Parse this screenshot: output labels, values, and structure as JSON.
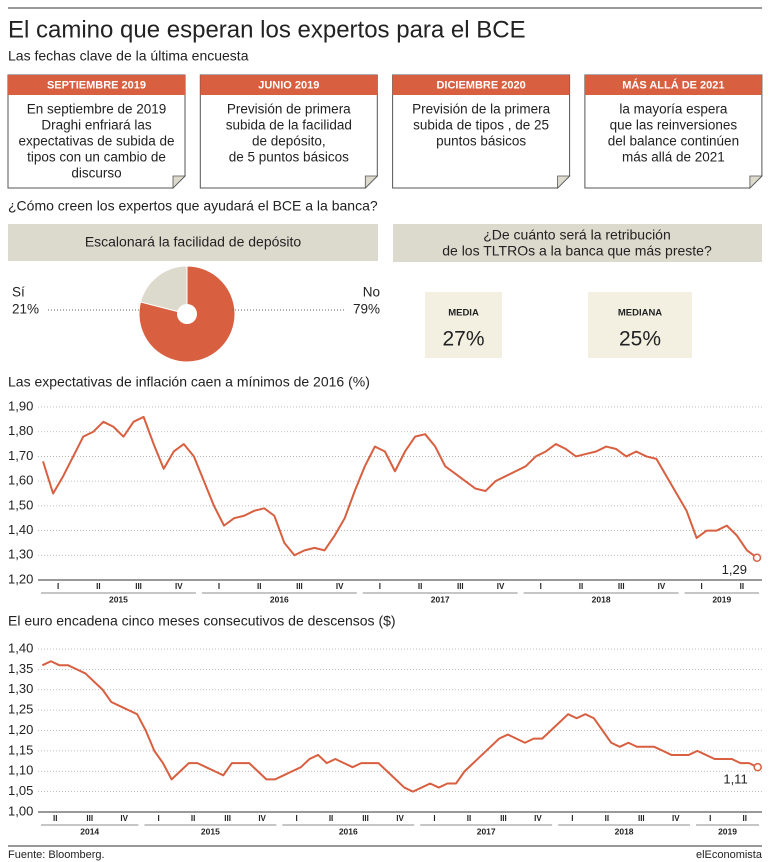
{
  "header": {
    "title": "El camino que esperan los expertos para el BCE",
    "subtitle": "Las fechas clave de la última encuesta"
  },
  "cards": [
    {
      "heading": "SEPTIEMBRE 2019",
      "lines": [
        "En septiembre de 2019",
        "Draghi enfriará las",
        "expectativas de subida de",
        "tipos con un cambio de",
        "discurso"
      ]
    },
    {
      "heading": "JUNIO 2019",
      "lines": [
        "Previsión de primera",
        "subida de la facilidad",
        "de depósito,",
        "de 5 puntos básicos"
      ]
    },
    {
      "heading": "DICIEMBRE 2020",
      "lines": [
        "Previsión de la primera",
        "subida de tipos , de 25",
        "puntos básicos"
      ]
    },
    {
      "heading": "MÁS ALLÁ DE 2021",
      "lines": [
        "la mayoría espera",
        "que las reinversiones",
        "del balance continúen",
        "más allá de 2021"
      ]
    }
  ],
  "question": "¿Cómo creen los expertos que ayudará el BCE a la banca?",
  "tltro": {
    "heading": [
      "¿De cuánto será la retribución",
      "de los TLTROs a la banca que más preste?"
    ],
    "boxes": [
      {
        "label": "MEDIA",
        "value": "27%"
      },
      {
        "label": "MEDIANA",
        "value": "25%"
      }
    ]
  },
  "chart_data": [
    {
      "type": "pie",
      "title": "Escalonará la facilidad de depósito",
      "categories": [
        "Sí",
        "No"
      ],
      "values": [
        21,
        79
      ],
      "value_labels": [
        "21%",
        "79%"
      ],
      "colors": [
        "#dcd9cd",
        "#d85f40"
      ]
    },
    {
      "type": "line",
      "title": "Las expectativas de inflación caen a mínimos de 2016 (%)",
      "quarters": [
        "I",
        "II",
        "III",
        "IV",
        "I",
        "II",
        "III",
        "IV",
        "I",
        "II",
        "III",
        "IV",
        "I",
        "II",
        "III",
        "IV",
        "I",
        "II"
      ],
      "years": [
        "2015",
        "2016",
        "2017",
        "2018",
        "2019"
      ],
      "year_spans": [
        4,
        4,
        4,
        4,
        2
      ],
      "color": "#d85f40",
      "grid": true,
      "ylim": [
        1.2,
        1.9
      ],
      "yticks": [
        {
          "value": 1.2,
          "label": "1,20"
        },
        {
          "value": 1.3,
          "label": "1,30"
        },
        {
          "value": 1.4,
          "label": "1,40"
        },
        {
          "value": 1.5,
          "label": "1,50"
        },
        {
          "value": 1.6,
          "label": "1,60"
        },
        {
          "value": 1.7,
          "label": "1,70"
        },
        {
          "value": 1.8,
          "label": "1,80"
        },
        {
          "value": 1.9,
          "label": "1,90"
        }
      ],
      "values": [
        1.68,
        1.55,
        1.62,
        1.7,
        1.78,
        1.8,
        1.84,
        1.82,
        1.78,
        1.84,
        1.86,
        1.75,
        1.65,
        1.72,
        1.75,
        1.7,
        1.6,
        1.5,
        1.42,
        1.45,
        1.46,
        1.48,
        1.49,
        1.46,
        1.35,
        1.3,
        1.32,
        1.33,
        1.32,
        1.38,
        1.45,
        1.56,
        1.66,
        1.74,
        1.72,
        1.64,
        1.72,
        1.78,
        1.79,
        1.74,
        1.66,
        1.63,
        1.6,
        1.57,
        1.56,
        1.6,
        1.62,
        1.64,
        1.66,
        1.7,
        1.72,
        1.75,
        1.73,
        1.7,
        1.71,
        1.72,
        1.74,
        1.73,
        1.7,
        1.72,
        1.7,
        1.69,
        1.62,
        1.55,
        1.48,
        1.37,
        1.4,
        1.4,
        1.42,
        1.38,
        1.32,
        1.29
      ],
      "end_label": "1,29"
    },
    {
      "type": "line",
      "title": "El euro encadena cinco meses consecutivos de descensos ($)",
      "quarters": [
        "II",
        "III",
        "IV",
        "I",
        "II",
        "III",
        "IV",
        "I",
        "II",
        "III",
        "IV",
        "I",
        "II",
        "III",
        "IV",
        "I",
        "II",
        "III",
        "IV",
        "I",
        "II"
      ],
      "years": [
        "2014",
        "2015",
        "2016",
        "2017",
        "2018",
        "2019"
      ],
      "year_spans": [
        3,
        4,
        4,
        4,
        4,
        2
      ],
      "color": "#d85f40",
      "grid": true,
      "ylim": [
        1.0,
        1.4
      ],
      "yticks": [
        {
          "value": 1.0,
          "label": "1,00"
        },
        {
          "value": 1.05,
          "label": "1,05"
        },
        {
          "value": 1.1,
          "label": "1,10"
        },
        {
          "value": 1.15,
          "label": "1,15"
        },
        {
          "value": 1.2,
          "label": "1,20"
        },
        {
          "value": 1.25,
          "label": "1,25"
        },
        {
          "value": 1.3,
          "label": "1,30"
        },
        {
          "value": 1.35,
          "label": "1,35"
        },
        {
          "value": 1.4,
          "label": "1,40"
        }
      ],
      "values": [
        1.36,
        1.37,
        1.36,
        1.36,
        1.35,
        1.34,
        1.32,
        1.3,
        1.27,
        1.26,
        1.25,
        1.24,
        1.2,
        1.15,
        1.12,
        1.08,
        1.1,
        1.12,
        1.12,
        1.11,
        1.1,
        1.09,
        1.12,
        1.12,
        1.12,
        1.1,
        1.08,
        1.08,
        1.09,
        1.1,
        1.11,
        1.13,
        1.14,
        1.12,
        1.13,
        1.12,
        1.11,
        1.12,
        1.12,
        1.12,
        1.1,
        1.08,
        1.06,
        1.05,
        1.06,
        1.07,
        1.06,
        1.07,
        1.07,
        1.1,
        1.12,
        1.14,
        1.16,
        1.18,
        1.19,
        1.18,
        1.17,
        1.18,
        1.18,
        1.2,
        1.22,
        1.24,
        1.23,
        1.24,
        1.23,
        1.2,
        1.17,
        1.16,
        1.17,
        1.16,
        1.16,
        1.16,
        1.15,
        1.14,
        1.14,
        1.14,
        1.15,
        1.14,
        1.13,
        1.13,
        1.13,
        1.12,
        1.12,
        1.11
      ],
      "end_label": "1,11"
    }
  ],
  "footer": {
    "source": "Fuente: Bloomberg.",
    "brand": "elEconomista"
  }
}
